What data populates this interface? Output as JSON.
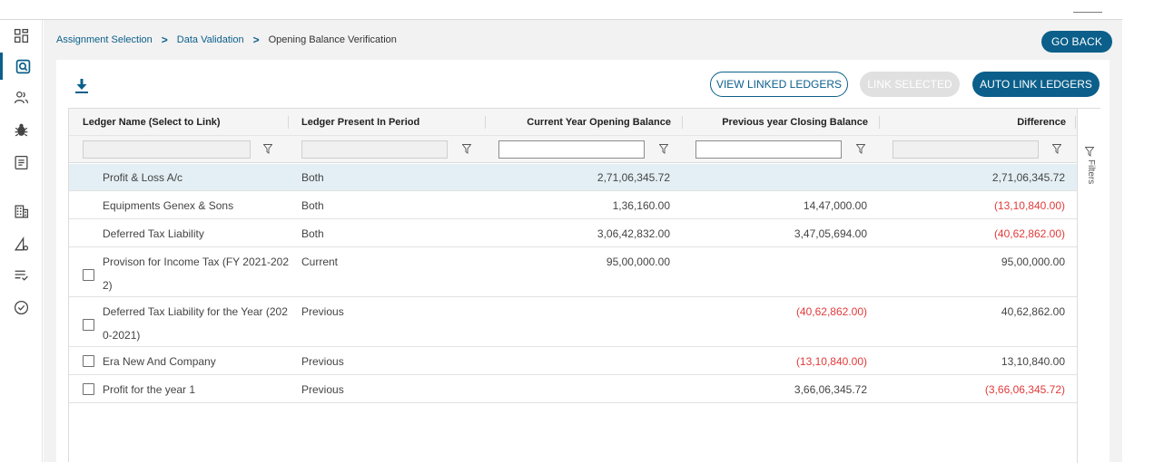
{
  "breadcrumb": {
    "items": [
      "Assignment Selection",
      "Data Validation"
    ],
    "separator": ">",
    "current": "Opening Balance Verification"
  },
  "header": {
    "go_back_label": "GO BACK"
  },
  "toolbar": {
    "view_linked_label": "VIEW LINKED LEDGERS",
    "link_selected_label": "LINK SELECTED",
    "auto_link_label": "AUTO LINK LEDGERS"
  },
  "table": {
    "columns": [
      "Ledger Name (Select to Link)",
      "Ledger Present In Period",
      "Current Year Opening Balance",
      "Previous year Closing Balance",
      "Difference"
    ],
    "rows": [
      {
        "name": "Profit & Loss A/c",
        "period": "Both",
        "current": "2,71,06,345.72",
        "previous": "",
        "difference": "2,71,06,345.72"
      },
      {
        "name": "Equipments Genex & Sons",
        "period": "Both",
        "current": "1,36,160.00",
        "previous": "14,47,000.00",
        "difference": "(13,10,840.00)"
      },
      {
        "name": "Deferred Tax Liability",
        "period": "Both",
        "current": "3,06,42,832.00",
        "previous": "3,47,05,694.00",
        "difference": "(40,62,862.00)"
      },
      {
        "name_line1": "Provison for Income Tax (FY 2021-202",
        "name_line2": "2)",
        "period": "Current",
        "current": "95,00,000.00",
        "previous": "",
        "difference": "95,00,000.00"
      },
      {
        "name_line1": "Deferred Tax Liability for the Year (202",
        "name_line2": "0-2021)",
        "period": "Previous",
        "current": "",
        "previous": "(40,62,862.00)",
        "difference": "40,62,862.00"
      },
      {
        "name": "Era New And Company",
        "period": "Previous",
        "current": "",
        "previous": "(13,10,840.00)",
        "difference": "13,10,840.00"
      },
      {
        "name": "Profit for the year 1",
        "period": "Previous",
        "current": "",
        "previous": "3,66,06,345.72",
        "difference": "(3,66,06,345.72)"
      }
    ]
  },
  "side_panel": {
    "filters_label": "Filters"
  },
  "colors": {
    "primary": "#0b5f8a",
    "negative": "#e23a3a",
    "selected_row": "#e4eff5"
  }
}
